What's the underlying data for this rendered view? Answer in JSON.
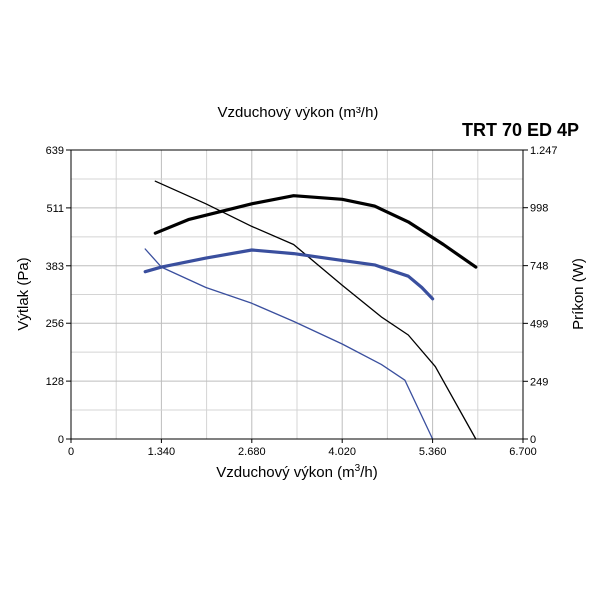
{
  "chart_data": {
    "type": "line",
    "title": "TRT 70 ED 4P",
    "top_label": "Vzduchový výkon (m³/h)",
    "xlabel": "Vzduchový výkon (m³/h)",
    "xlabel_main": "Vzduchový výkon (m",
    "xlabel_sup": "3",
    "xlabel_end": "/h)",
    "ylabel": "Výtlak (Pa)",
    "y2label": "Príkon (W)",
    "xlim": [
      0,
      6700
    ],
    "ylim": [
      0,
      639
    ],
    "y2lim": [
      0,
      1247
    ],
    "x_ticks": [
      0,
      1340,
      2680,
      4020,
      5360,
      6700
    ],
    "x_tick_labels": [
      "0",
      "1.340",
      "2.680",
      "4.020",
      "5.360",
      "6.700"
    ],
    "y_ticks": [
      0,
      128,
      256,
      383,
      511,
      639
    ],
    "y_tick_labels": [
      "0",
      "128",
      "256",
      "383",
      "511",
      "639"
    ],
    "y2_ticks": [
      0,
      249,
      499,
      748,
      998,
      1247
    ],
    "y2_tick_labels": [
      "0",
      "249",
      "499",
      "748",
      "998",
      "1.247"
    ],
    "grid": true,
    "colors": {
      "black": "#000000",
      "blue": "#3a4f9e"
    },
    "series": [
      {
        "axis": "pressure",
        "color": "#000000",
        "width": 3.2,
        "points": [
          [
            1250,
            455
          ],
          [
            1740,
            485
          ],
          [
            2680,
            520
          ],
          [
            3300,
            538
          ],
          [
            4020,
            530
          ],
          [
            4500,
            515
          ],
          [
            5000,
            480
          ],
          [
            5520,
            430
          ],
          [
            6000,
            380
          ]
        ]
      },
      {
        "axis": "pressure",
        "color": "#000000",
        "width": 1.3,
        "points": [
          [
            1250,
            570
          ],
          [
            2000,
            520
          ],
          [
            2680,
            470
          ],
          [
            3300,
            430
          ],
          [
            4020,
            340
          ],
          [
            4600,
            270
          ],
          [
            5000,
            230
          ],
          [
            5400,
            160
          ],
          [
            6000,
            0
          ]
        ]
      },
      {
        "axis": "pressure",
        "color": "#3a4f9e",
        "width": 3.2,
        "points": [
          [
            1100,
            370
          ],
          [
            1340,
            380
          ],
          [
            2000,
            400
          ],
          [
            2680,
            418
          ],
          [
            3300,
            410
          ],
          [
            4020,
            395
          ],
          [
            4500,
            385
          ],
          [
            5000,
            360
          ],
          [
            5200,
            335
          ],
          [
            5360,
            310
          ]
        ]
      },
      {
        "axis": "pressure",
        "color": "#3a4f9e",
        "width": 1.3,
        "points": [
          [
            1100,
            420
          ],
          [
            1340,
            380
          ],
          [
            2000,
            335
          ],
          [
            2680,
            300
          ],
          [
            3300,
            260
          ],
          [
            4020,
            210
          ],
          [
            4600,
            165
          ],
          [
            4950,
            130
          ],
          [
            5360,
            0
          ]
        ]
      }
    ]
  }
}
